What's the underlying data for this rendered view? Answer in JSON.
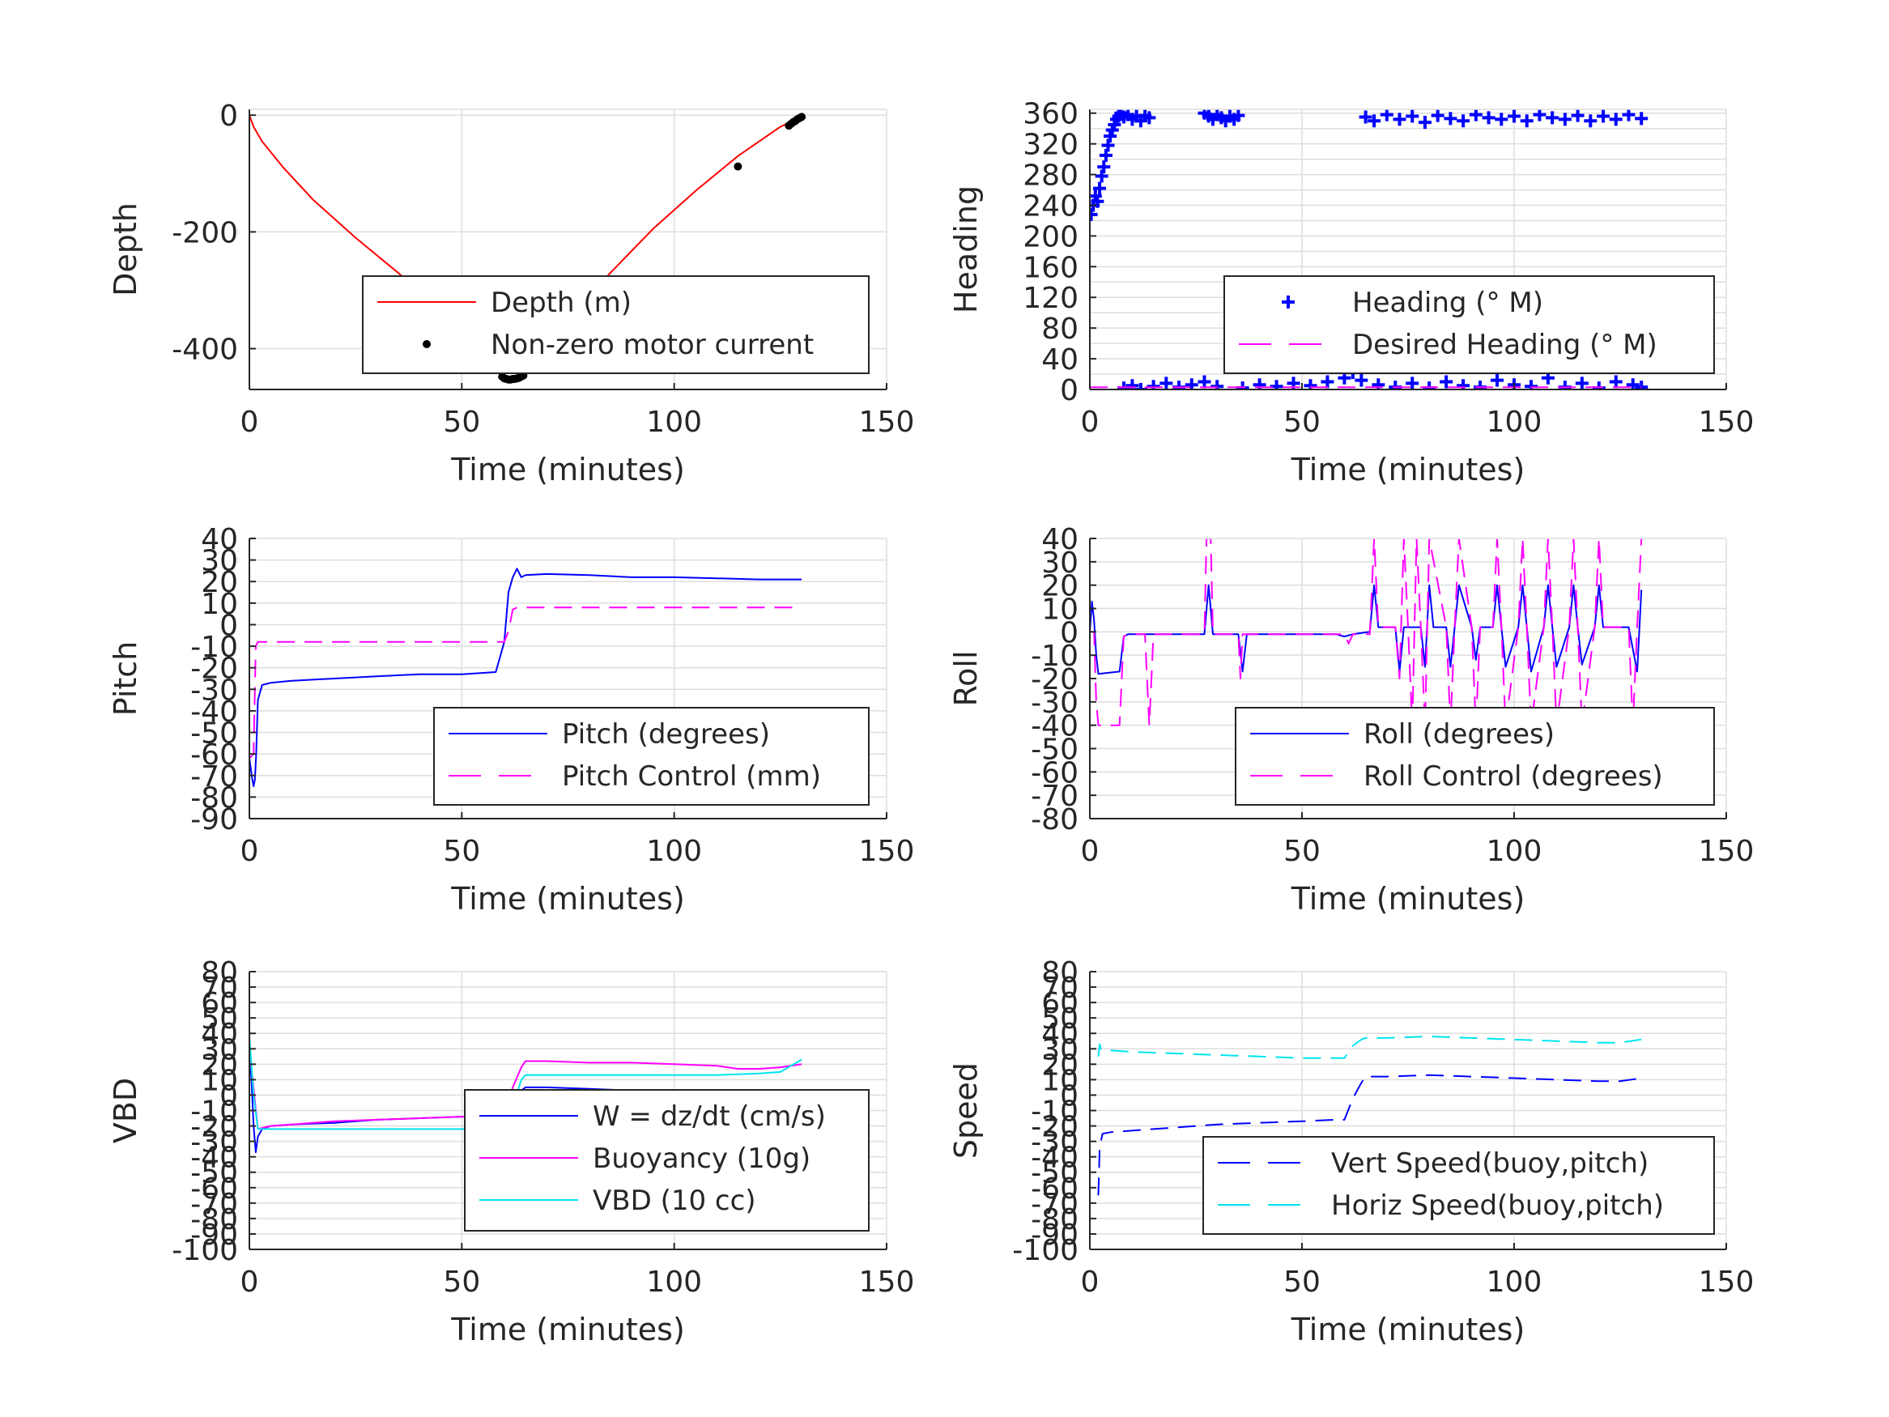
{
  "figure": {
    "xlabel": "Time (minutes)",
    "colors": {
      "red": "#ff0000",
      "black": "#000000",
      "blue": "#0000ff",
      "magenta": "#ff00ff",
      "cyan": "#00e5ee"
    }
  },
  "chart_data": [
    {
      "id": "depth",
      "type": "line",
      "ylabel": "Depth",
      "xlabel": "Time (minutes)",
      "xlim": [
        0,
        150
      ],
      "ylim": [
        -470,
        10
      ],
      "xticks": [
        0,
        50,
        100,
        150
      ],
      "yticks": [
        -400,
        -200,
        0
      ],
      "ygrid_step": 200,
      "grid": true,
      "legend_placement": "bottom-right",
      "series": [
        {
          "name": "Depth (m)",
          "style": "line",
          "color": "#ff0000",
          "x": [
            0,
            1,
            3,
            8,
            15,
            25,
            35,
            45,
            55,
            60,
            62,
            65,
            75,
            85,
            95,
            105,
            115,
            125,
            130
          ],
          "y": [
            0,
            -20,
            -45,
            -90,
            -145,
            -210,
            -270,
            -335,
            -400,
            -448,
            -452,
            -440,
            -350,
            -270,
            -195,
            -130,
            -70,
            -20,
            -2
          ]
        },
        {
          "name": "Non-zero motor current",
          "style": "dots",
          "color": "#000000",
          "x": [
            59.5,
            60,
            60.5,
            61,
            61.5,
            62,
            62.5,
            63,
            63.5,
            64,
            64.5,
            115,
            127,
            127.5,
            128,
            128.5,
            129,
            129.5,
            130
          ],
          "y": [
            -448,
            -451,
            -452,
            -453,
            -453,
            -452,
            -452,
            -451,
            -450,
            -448,
            -446,
            -88,
            -18,
            -15,
            -12,
            -10,
            -7,
            -5,
            -3
          ]
        }
      ]
    },
    {
      "id": "heading",
      "type": "scatter",
      "ylabel": "Heading",
      "xlabel": "Time (minutes)",
      "xlim": [
        0,
        150
      ],
      "ylim": [
        0,
        365
      ],
      "xticks": [
        0,
        50,
        100,
        150
      ],
      "yticks": [
        0,
        40,
        80,
        120,
        160,
        200,
        240,
        280,
        320,
        360
      ],
      "ygrid_step": 20,
      "grid": true,
      "legend_placement": "bottom-right",
      "series": [
        {
          "name": "Heading (° M)",
          "style": "plus",
          "color": "#0000ff",
          "x": [
            0.3,
            0.8,
            1.3,
            1.8,
            2.3,
            2.8,
            3.3,
            3.8,
            4.3,
            4.8,
            5.3,
            5.8,
            6.3,
            6.8,
            7.3,
            8,
            9,
            10,
            11,
            12,
            13,
            14,
            27,
            28,
            29,
            30,
            31,
            32,
            33,
            34,
            35,
            65,
            67,
            70,
            73,
            76,
            79,
            82,
            85,
            88,
            91,
            94,
            97,
            100,
            103,
            106,
            109,
            112,
            115,
            118,
            121,
            124,
            127,
            130,
            8,
            10,
            12,
            15,
            18,
            21,
            24,
            27,
            30,
            36,
            40,
            44,
            48,
            52,
            56,
            60,
            62,
            64,
            68,
            72,
            76,
            80,
            84,
            88,
            92,
            96,
            100,
            104,
            108,
            112,
            116,
            120,
            124,
            128,
            130
          ],
          "y": [
            228,
            240,
            252,
            245,
            262,
            278,
            290,
            305,
            318,
            330,
            338,
            345,
            352,
            356,
            360,
            355,
            358,
            352,
            356,
            350,
            357,
            354,
            360,
            356,
            352,
            358,
            354,
            350,
            356,
            352,
            357,
            355,
            350,
            358,
            352,
            356,
            348,
            357,
            353,
            350,
            358,
            354,
            352,
            356,
            350,
            358,
            354,
            352,
            357,
            350,
            356,
            352,
            358,
            353,
            2,
            5,
            0,
            4,
            8,
            3,
            6,
            10,
            4,
            2,
            6,
            4,
            8,
            5,
            10,
            15,
            22,
            12,
            6,
            3,
            8,
            2,
            10,
            5,
            3,
            12,
            6,
            4,
            15,
            3,
            8,
            2,
            10,
            6,
            3
          ]
        },
        {
          "name": "Desired Heading (° M)",
          "style": "dash",
          "color": "#ff00ff",
          "x": [
            0,
            130
          ],
          "y": [
            3,
            3
          ]
        }
      ]
    },
    {
      "id": "pitch",
      "type": "line",
      "ylabel": "Pitch",
      "xlabel": "Time (minutes)",
      "xlim": [
        0,
        150
      ],
      "ylim": [
        -90,
        40
      ],
      "xticks": [
        0,
        50,
        100,
        150
      ],
      "yticks": [
        -90,
        -80,
        -70,
        -60,
        -50,
        -40,
        -30,
        -20,
        -10,
        0,
        10,
        20,
        30,
        40
      ],
      "ygrid_step": 10,
      "grid": true,
      "legend_placement": "bottom-right",
      "series": [
        {
          "name": "Pitch (degrees)",
          "style": "line",
          "color": "#0000ff",
          "x": [
            0,
            0.7,
            1,
            1.3,
            1.6,
            2,
            3,
            5,
            10,
            20,
            30,
            40,
            50,
            58,
            59,
            60,
            61,
            62,
            63,
            64,
            65,
            70,
            80,
            90,
            100,
            110,
            120,
            130
          ],
          "y": [
            -62,
            -72,
            -75,
            -72,
            -60,
            -35,
            -28,
            -27,
            -26,
            -25,
            -24,
            -23,
            -23,
            -22,
            -15,
            -8,
            15,
            22,
            26,
            22,
            23,
            23.5,
            23,
            22,
            22,
            21.5,
            21,
            21
          ]
        },
        {
          "name": "Pitch Control (mm)",
          "style": "dash",
          "color": "#ff00ff",
          "x": [
            0,
            1,
            1.5,
            2,
            60,
            61,
            62,
            63,
            130
          ],
          "y": [
            -62,
            -60,
            -10,
            -8,
            -8,
            -3,
            7,
            8,
            8
          ]
        }
      ]
    },
    {
      "id": "roll",
      "type": "line",
      "ylabel": "Roll",
      "xlabel": "Time (minutes)",
      "xlim": [
        0,
        150
      ],
      "ylim": [
        -80,
        40
      ],
      "xticks": [
        0,
        50,
        100,
        150
      ],
      "yticks": [
        -80,
        -70,
        -60,
        -50,
        -40,
        -30,
        -20,
        -10,
        0,
        10,
        20,
        30,
        40
      ],
      "ygrid_step": 10,
      "grid": true,
      "legend_placement": "bottom-right",
      "series": [
        {
          "name": "Roll (degrees)",
          "style": "line",
          "color": "#0000ff",
          "x": [
            0,
            0.5,
            1,
            1.5,
            2,
            7,
            8,
            9,
            10,
            13,
            14,
            15,
            27,
            28,
            29,
            35,
            36,
            37,
            58,
            60,
            62,
            66,
            67,
            68,
            69,
            72,
            73,
            74,
            75,
            78,
            79,
            80,
            81,
            84,
            85,
            86,
            87,
            90,
            91,
            92,
            95,
            96,
            97,
            98,
            101,
            102,
            103,
            104,
            107,
            108,
            109,
            110,
            113,
            114,
            115,
            116,
            119,
            120,
            121,
            122,
            125,
            127,
            129,
            130
          ],
          "y": [
            0,
            13,
            5,
            -10,
            -18,
            -17,
            -2,
            -1,
            -1,
            -1,
            -1,
            -1,
            -1,
            20,
            -1,
            -1,
            -17,
            -1,
            -1,
            -2,
            -1,
            0,
            20,
            2,
            2,
            2,
            -17,
            2,
            2,
            2,
            -15,
            20,
            2,
            2,
            -15,
            2,
            20,
            2,
            -12,
            2,
            2,
            20,
            2,
            -15,
            2,
            20,
            2,
            -17,
            2,
            20,
            2,
            -15,
            2,
            20,
            2,
            -14,
            2,
            20,
            2,
            2,
            2,
            2,
            -17,
            18
          ]
        },
        {
          "name": "Roll Control (degrees)",
          "style": "dash",
          "color": "#ff00ff",
          "x": [
            0,
            1,
            1.5,
            2,
            7,
            8,
            9,
            13,
            14,
            15,
            27,
            27.5,
            28.5,
            29,
            35,
            35.5,
            36,
            60,
            61,
            62,
            66,
            67,
            68,
            72,
            73,
            74,
            75,
            76,
            77,
            78,
            79,
            80,
            84,
            85,
            86,
            87,
            90,
            91,
            92,
            95,
            96,
            97,
            98,
            101,
            102,
            103,
            104,
            107,
            108,
            109,
            110,
            113,
            114,
            115,
            116,
            119,
            120,
            121,
            122,
            125,
            127,
            128,
            129,
            130
          ],
          "y": [
            0,
            0,
            -30,
            -40,
            -40,
            -2,
            -1,
            -1,
            -40,
            -1,
            -1,
            40,
            40,
            -1,
            -1,
            -20,
            -1,
            -1,
            -5,
            -1,
            -1,
            40,
            2,
            2,
            -20,
            40,
            2,
            -40,
            40,
            2,
            -40,
            40,
            2,
            -40,
            2,
            40,
            2,
            -40,
            2,
            2,
            40,
            2,
            -40,
            2,
            40,
            2,
            -40,
            2,
            40,
            2,
            -40,
            2,
            40,
            2,
            -40,
            2,
            40,
            2,
            2,
            2,
            2,
            -40,
            2,
            40
          ]
        }
      ]
    },
    {
      "id": "vbd",
      "type": "line",
      "ylabel": "VBD",
      "xlabel": "Time (minutes)",
      "xlim": [
        0,
        150
      ],
      "ylim": [
        -100,
        80
      ],
      "xticks": [
        0,
        50,
        100,
        150
      ],
      "yticks": [
        -100,
        -90,
        -80,
        -70,
        -60,
        -50,
        -40,
        -30,
        -20,
        -10,
        0,
        10,
        20,
        30,
        40,
        50,
        60,
        70,
        80
      ],
      "ygrid_step": 10,
      "grid": true,
      "legend_placement": "bottom-right",
      "series": [
        {
          "name": "W = dz/dt (cm/s)",
          "style": "line",
          "color": "#0000ff",
          "x": [
            0,
            0.5,
            1,
            1.5,
            2,
            3,
            5,
            10,
            20,
            30,
            40,
            50,
            58,
            60,
            62,
            64,
            65,
            70,
            80,
            90,
            100,
            110,
            115,
            120,
            125,
            130
          ],
          "y": [
            30,
            10,
            -20,
            -37,
            -27,
            -22,
            -20,
            -19,
            -18,
            -16,
            -15,
            -14,
            -13,
            -13,
            -4,
            3,
            5,
            5,
            4,
            3,
            2,
            1,
            0,
            0,
            -1,
            0
          ]
        },
        {
          "name": "Buoyancy (10g)",
          "style": "line",
          "color": "#ff00ff",
          "x": [
            0,
            2,
            5,
            10,
            20,
            30,
            40,
            50,
            58,
            60,
            62,
            64,
            65,
            70,
            80,
            90,
            100,
            110,
            115,
            120,
            125,
            130
          ],
          "y": [
            30,
            -22,
            -20,
            -19,
            -17,
            -16,
            -15,
            -14,
            -13,
            -13,
            5,
            18,
            22,
            22,
            21,
            21,
            20,
            19,
            17,
            17,
            18,
            20
          ]
        },
        {
          "name": "VBD (10 cc)",
          "style": "line",
          "color": "#00e5ee",
          "x": [
            0,
            1,
            2,
            5,
            10,
            20,
            30,
            40,
            50,
            58,
            60,
            62,
            64,
            65,
            70,
            80,
            90,
            100,
            110,
            120,
            125,
            130
          ],
          "y": [
            38,
            0,
            -22,
            -22,
            -22,
            -22,
            -22,
            -22,
            -22,
            -22,
            -21,
            -8,
            10,
            13,
            13,
            13,
            13,
            13,
            13,
            14,
            15,
            23
          ]
        }
      ]
    },
    {
      "id": "speed",
      "type": "line",
      "ylabel": "Speed",
      "xlabel": "Time (minutes)",
      "xlim": [
        0,
        150
      ],
      "ylim": [
        -100,
        80
      ],
      "xticks": [
        0,
        50,
        100,
        150
      ],
      "yticks": [
        -100,
        -90,
        -80,
        -70,
        -60,
        -50,
        -40,
        -30,
        -20,
        -10,
        0,
        10,
        20,
        30,
        40,
        50,
        60,
        70,
        80
      ],
      "ygrid_step": 10,
      "grid": true,
      "legend_placement": "bottom-right",
      "series": [
        {
          "name": "Vert Speed(buoy,pitch)",
          "style": "dash",
          "color": "#0000ff",
          "x": [
            2,
            2.3,
            2.6,
            3,
            5,
            10,
            20,
            30,
            40,
            50,
            58,
            60,
            62,
            64,
            65,
            70,
            80,
            90,
            100,
            110,
            120,
            125,
            130
          ],
          "y": [
            -65,
            -35,
            -30,
            -25,
            -24,
            -23,
            -21,
            -19,
            -18,
            -17,
            -16,
            -16,
            -2,
            8,
            12,
            12,
            13,
            12,
            11,
            10,
            9,
            9,
            11
          ]
        },
        {
          "name": "Horiz Speed(buoy,pitch)",
          "style": "dash",
          "color": "#00e5ee",
          "x": [
            2,
            2.3,
            2.6,
            3,
            5,
            10,
            20,
            30,
            40,
            50,
            58,
            60,
            62,
            64,
            65,
            70,
            80,
            90,
            100,
            110,
            120,
            125,
            130
          ],
          "y": [
            25,
            33,
            30,
            29,
            29,
            28,
            27,
            26,
            25,
            24,
            24,
            24,
            32,
            36,
            37,
            37,
            38,
            37,
            36,
            35,
            34,
            34,
            36
          ]
        }
      ]
    }
  ]
}
